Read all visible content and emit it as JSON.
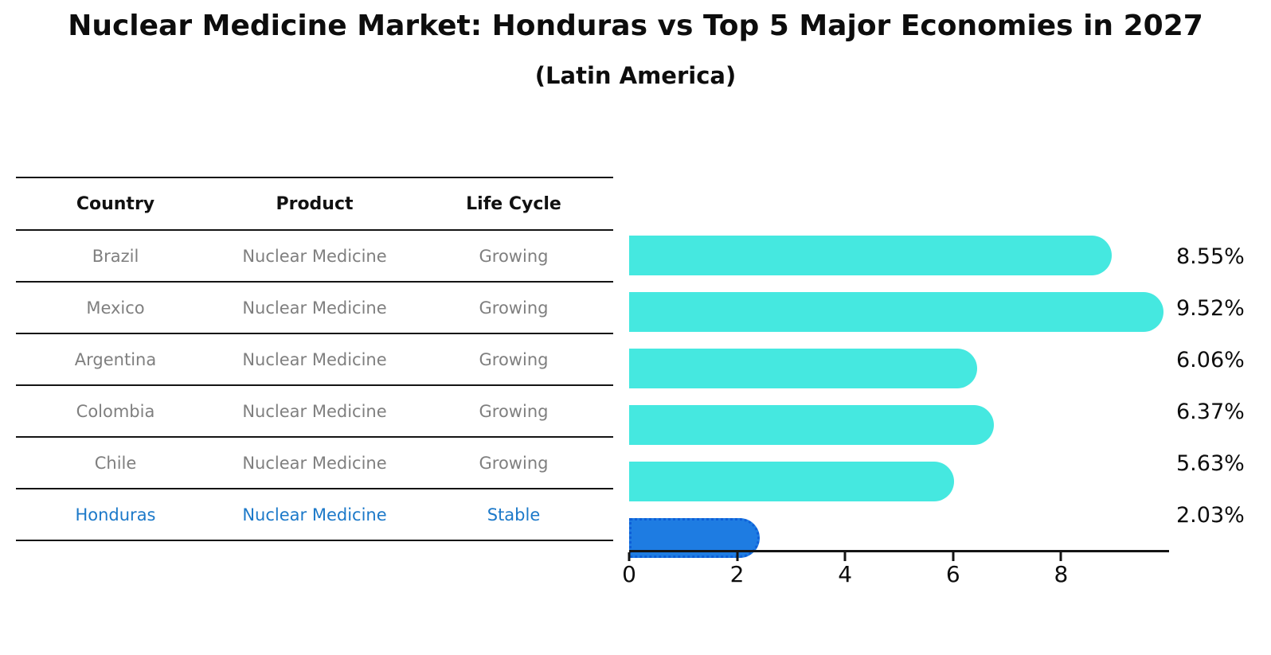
{
  "title": "Nuclear Medicine Market: Honduras vs Top 5 Major Economies in 2027",
  "subtitle": "(Latin America)",
  "table": {
    "headers": {
      "country": "Country",
      "product": "Product",
      "life_cycle": "Life Cycle"
    },
    "rows": [
      {
        "country": "Brazil",
        "product": "Nuclear Medicine",
        "life_cycle": "Growing"
      },
      {
        "country": "Mexico",
        "product": "Nuclear Medicine",
        "life_cycle": "Growing"
      },
      {
        "country": "Argentina",
        "product": "Nuclear Medicine",
        "life_cycle": "Growing"
      },
      {
        "country": "Colombia",
        "product": "Nuclear Medicine",
        "life_cycle": "Growing"
      },
      {
        "country": "Chile",
        "product": "Nuclear Medicine",
        "life_cycle": "Growing"
      },
      {
        "country": "Honduras",
        "product": "Nuclear Medicine",
        "life_cycle": "Stable"
      }
    ],
    "highlight_row": "Honduras"
  },
  "chart_data": {
    "type": "bar",
    "orientation": "horizontal",
    "title": "Nuclear Medicine Market: Honduras vs Top 5 Major Economies in 2027",
    "subtitle": "(Latin America)",
    "categories": [
      "Brazil",
      "Mexico",
      "Argentina",
      "Colombia",
      "Chile",
      "Honduras"
    ],
    "values": [
      8.55,
      9.52,
      6.06,
      6.37,
      5.63,
      2.03
    ],
    "value_labels": [
      "8.55%",
      "9.52%",
      "6.06%",
      "6.37%",
      "5.63%",
      "2.03%"
    ],
    "xlabel": "",
    "ylabel": "",
    "xlim": [
      0,
      10
    ],
    "xticks": [
      "0",
      "2",
      "4",
      "6",
      "8"
    ],
    "grid": false,
    "legend": "none",
    "highlight_index": 5
  },
  "colors": {
    "bar": "#45E8E0",
    "highlight_bar": "#1E7CE2",
    "highlight_border": "#0E5FD8",
    "highlight_text": "#1C79C9",
    "row_text": "#7F7F7F",
    "axis": "#141414"
  }
}
